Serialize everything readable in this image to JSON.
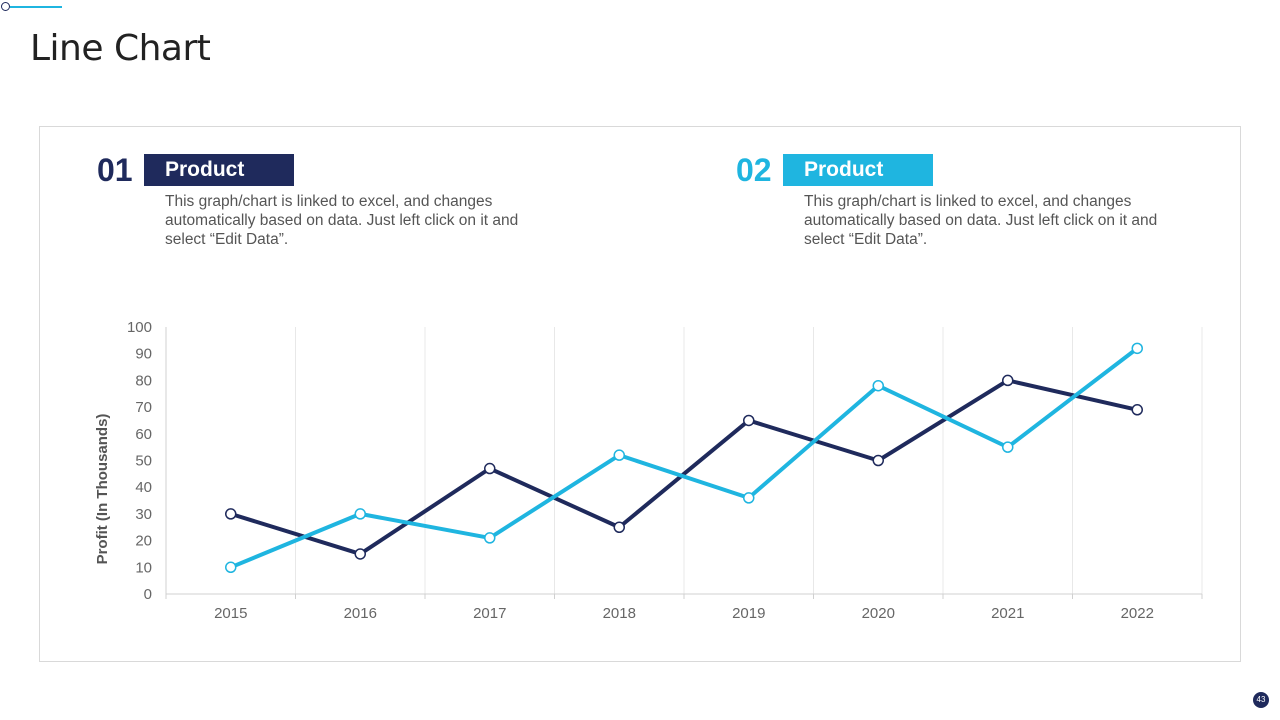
{
  "slide": {
    "title": "Line Chart",
    "page_number": "43",
    "colors": {
      "series1": "#1f2a5c",
      "series2": "#1fb5e0",
      "axis_text": "#666666",
      "grid": "#e8e8e8"
    }
  },
  "products": [
    {
      "number": "01",
      "label": "Product",
      "description": "This graph/chart is linked to excel, and changes automatically based on data. Just left click on it and select “Edit Data”."
    },
    {
      "number": "02",
      "label": "Product",
      "description": "This graph/chart is linked to excel, and changes automatically based on data. Just left click on it and select “Edit Data”."
    }
  ],
  "chart_data": {
    "type": "line",
    "title": "",
    "xlabel": "",
    "ylabel": "Profit (In Thousands)",
    "categories": [
      "2015",
      "2016",
      "2017",
      "2018",
      "2019",
      "2020",
      "2021",
      "2022"
    ],
    "ylim": [
      0,
      100
    ],
    "yticks": [
      0,
      10,
      20,
      30,
      40,
      50,
      60,
      70,
      80,
      90,
      100
    ],
    "grid": "vertical",
    "legend": "none",
    "series": [
      {
        "name": "Product 01",
        "color": "#1f2a5c",
        "values": [
          30,
          15,
          47,
          25,
          65,
          50,
          80,
          69
        ]
      },
      {
        "name": "Product 02",
        "color": "#1fb5e0",
        "values": [
          10,
          30,
          21,
          52,
          36,
          78,
          55,
          92
        ]
      }
    ]
  }
}
